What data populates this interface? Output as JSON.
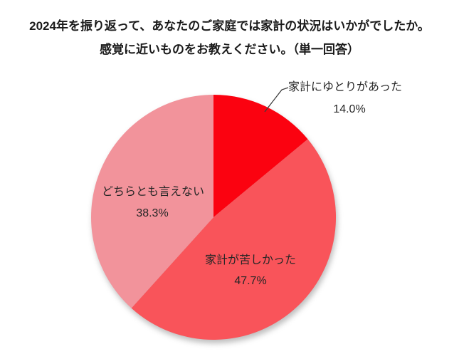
{
  "title": {
    "line1": "2024年を振り返って、あなたのご家庭では家計の状況はいかがでしたか。",
    "line2": "感覚に近いものをお教えください。（単一回答）"
  },
  "chart_data": {
    "type": "pie",
    "title": "2024年を振り返って、あなたのご家庭では家計の状況はいかがでしたか。感覚に近いものをお教えください。（単一回答）",
    "unit": "%",
    "start_angle_deg": 0,
    "direction": "clockwise",
    "legend_position": "none",
    "slices": [
      {
        "label": "家計にゆとりがあった",
        "value": 14.0,
        "pct_label": "14.0%",
        "color": "#FB0210"
      },
      {
        "label": "家計が苦しかった",
        "value": 47.7,
        "pct_label": "47.7%",
        "color": "#F9545A"
      },
      {
        "label": "どちらとも言えない",
        "value": 38.3,
        "pct_label": "38.3%",
        "color": "#F2939B"
      }
    ]
  }
}
